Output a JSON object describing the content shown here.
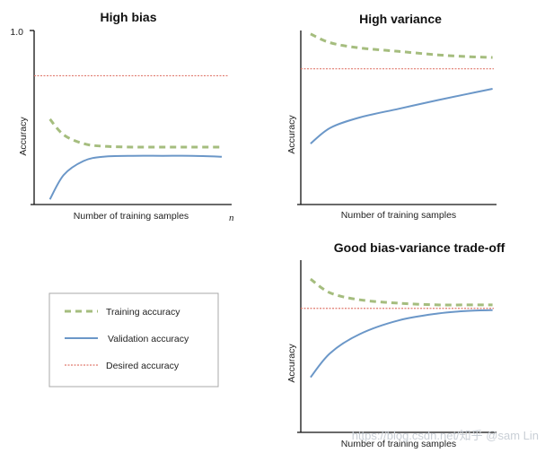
{
  "chart_data": [
    {
      "type": "line",
      "title": "High bias",
      "xlabel": "Number of training samples",
      "ylabel": "Accuracy",
      "y_tick_label": "1.0",
      "x_end_label": "n",
      "ylim": [
        0,
        1
      ],
      "xlim": [
        0,
        1
      ],
      "desired_accuracy": 0.74,
      "series": [
        {
          "name": "Training accuracy",
          "style": "dashed",
          "color": "#a5bd7e",
          "x": [
            0.08,
            0.15,
            0.25,
            0.35,
            0.5,
            0.65,
            0.8,
            0.95
          ],
          "values": [
            0.49,
            0.4,
            0.35,
            0.335,
            0.33,
            0.33,
            0.33,
            0.33
          ]
        },
        {
          "name": "Validation accuracy",
          "style": "solid",
          "color": "#6b97c8",
          "x": [
            0.08,
            0.15,
            0.25,
            0.35,
            0.5,
            0.65,
            0.8,
            0.95
          ],
          "values": [
            0.03,
            0.17,
            0.25,
            0.275,
            0.28,
            0.28,
            0.28,
            0.275
          ]
        }
      ]
    },
    {
      "type": "line",
      "title": "High variance",
      "xlabel": "Number of training samples",
      "ylabel": "Accuracy",
      "ylim": [
        0,
        1
      ],
      "xlim": [
        0,
        1
      ],
      "desired_accuracy": 0.78,
      "series": [
        {
          "name": "Training accuracy",
          "style": "dashed",
          "color": "#a5bd7e",
          "x": [
            0.05,
            0.15,
            0.3,
            0.5,
            0.7,
            0.85,
            0.98
          ],
          "values": [
            0.98,
            0.93,
            0.9,
            0.88,
            0.86,
            0.85,
            0.845
          ]
        },
        {
          "name": "Validation accuracy",
          "style": "solid",
          "color": "#6b97c8",
          "x": [
            0.05,
            0.15,
            0.3,
            0.5,
            0.7,
            0.85,
            0.98
          ],
          "values": [
            0.35,
            0.44,
            0.5,
            0.55,
            0.6,
            0.635,
            0.665
          ]
        }
      ]
    },
    {
      "type": "line",
      "title": "Good bias-variance trade-off",
      "xlabel": "Number of training samples",
      "ylabel": "Accuracy",
      "ylim": [
        0,
        1
      ],
      "xlim": [
        0,
        1
      ],
      "desired_accuracy": 0.72,
      "series": [
        {
          "name": "Training accuracy",
          "style": "dashed",
          "color": "#a5bd7e",
          "x": [
            0.05,
            0.15,
            0.3,
            0.5,
            0.7,
            0.85,
            0.98
          ],
          "values": [
            0.89,
            0.81,
            0.77,
            0.75,
            0.74,
            0.74,
            0.74
          ]
        },
        {
          "name": "Validation accuracy",
          "style": "solid",
          "color": "#6b97c8",
          "x": [
            0.05,
            0.15,
            0.3,
            0.5,
            0.7,
            0.85,
            0.98
          ],
          "values": [
            0.32,
            0.46,
            0.57,
            0.65,
            0.69,
            0.705,
            0.71
          ]
        }
      ]
    }
  ],
  "legend": {
    "items": [
      {
        "label": "Training accuracy",
        "style": "dashed",
        "color": "#a5bd7e"
      },
      {
        "label": "Validation accuracy",
        "style": "solid",
        "color": "#6b97c8"
      },
      {
        "label": "Desired accuracy",
        "style": "dotted",
        "color": "#e07a6e"
      }
    ]
  },
  "watermark": "https://blog.csdn.net/知乎 @sam Lin",
  "colors": {
    "desired": "#e07a6e",
    "axis": "#111111"
  }
}
